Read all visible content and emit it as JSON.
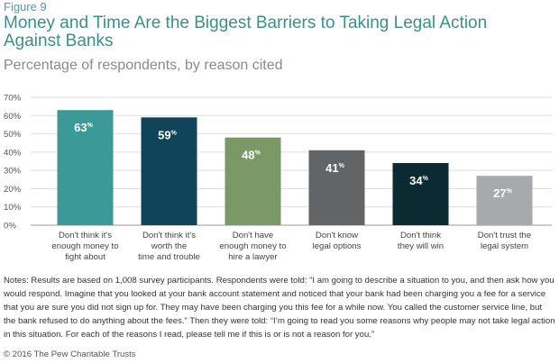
{
  "figure_label": "Figure 9",
  "chart_data": {
    "type": "bar",
    "title": "Money and Time Are the Biggest Barriers to Taking Legal Action Against Banks",
    "subtitle": "Percentage of respondents, by reason cited",
    "categories": [
      [
        "Don't think it's",
        "enough money to",
        "fight about"
      ],
      [
        "Don't think it's",
        "worth the",
        "time and trouble"
      ],
      [
        "Don't have",
        "enough money to",
        "hire a lawyer"
      ],
      [
        "Don't know",
        "legal options"
      ],
      [
        "Don't think",
        "they will win"
      ],
      [
        "Don't trust the",
        "legal system"
      ]
    ],
    "values": [
      63,
      59,
      48,
      41,
      34,
      27
    ],
    "value_suffix": "%",
    "ylim": [
      0,
      70
    ],
    "yticks": [
      "0%",
      "10%",
      "20%",
      "30%",
      "40%",
      "50%",
      "60%",
      "70%"
    ],
    "colors": [
      "#3b9a97",
      "#0f4459",
      "#7a9966",
      "#636466",
      "#0b2a32",
      "#a7a9ac"
    ],
    "grid": true
  },
  "notes": "Notes: Results are based on 1,008 survey participants. Respondents were told: “I am going to describe a situation to you, and then ask how you would respond. Imagine that you looked at your bank account statement and noticed that your bank had been charging you a fee for a service that you are sure you did not sign up for. They may have been charging you this fee for a while now. You called the customer service line, but the bank refused to do anything about the fees.” Then they were told: “I’m going to read you some reasons why people may not take legal action in this situation. For each of the reasons I read, please tell me if this is or is not a reason for you.”",
  "credit": "© 2016 The Pew Charitable Trusts"
}
